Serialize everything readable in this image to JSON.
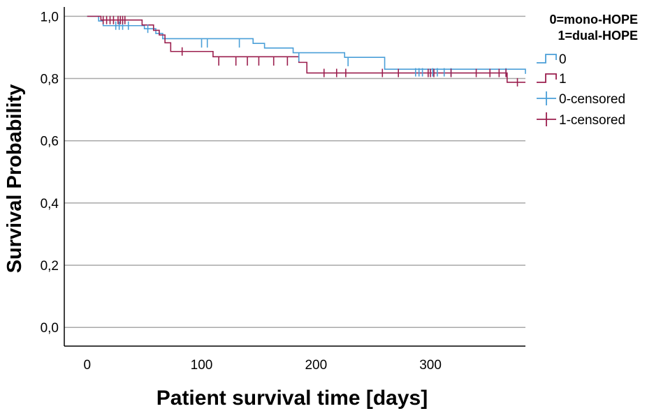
{
  "chart_data": {
    "type": "line",
    "title": "",
    "xlabel": "Patient survival time [days]",
    "ylabel": "Survival Probability",
    "xlim": [
      -20,
      383
    ],
    "ylim": [
      -0.06,
      1.03
    ],
    "x_ticks": [
      0,
      100,
      200,
      300
    ],
    "x_tick_labels": [
      "0",
      "100",
      "200",
      "300"
    ],
    "y_ticks": [
      0.0,
      0.2,
      0.4,
      0.6,
      0.8,
      1.0
    ],
    "y_tick_labels": [
      "0,0",
      "0,2",
      "0,4",
      "0,6",
      "0,8",
      "1,0"
    ],
    "grid": "horizontal",
    "legend": {
      "position": "top-right",
      "title_lines": [
        "0=mono-HOPE",
        "1=dual-HOPE"
      ],
      "entries": [
        {
          "label": "0",
          "kind": "step",
          "color": "#4a9fd8"
        },
        {
          "label": "1",
          "kind": "step",
          "color": "#9b1f4e"
        },
        {
          "label": "0-censored",
          "kind": "censor",
          "color": "#4a9fd8"
        },
        {
          "label": "1-censored",
          "kind": "censor",
          "color": "#9b1f4e"
        }
      ]
    },
    "series": [
      {
        "name": "0",
        "color": "#4a9fd8",
        "steps": [
          [
            0,
            1.0
          ],
          [
            10,
            0.985
          ],
          [
            14,
            0.97
          ],
          [
            35,
            0.97
          ],
          [
            50,
            0.96
          ],
          [
            60,
            0.945
          ],
          [
            66,
            0.928
          ],
          [
            100,
            0.928
          ],
          [
            145,
            0.913
          ],
          [
            155,
            0.898
          ],
          [
            180,
            0.883
          ],
          [
            225,
            0.868
          ],
          [
            260,
            0.83
          ],
          [
            383,
            0.815
          ]
        ],
        "censored": [
          [
            25,
            0.97
          ],
          [
            28,
            0.97
          ],
          [
            31,
            0.97
          ],
          [
            36,
            0.97
          ],
          [
            53,
            0.96
          ],
          [
            100,
            0.913
          ],
          [
            105,
            0.913
          ],
          [
            133,
            0.913
          ],
          [
            185,
            0.868
          ],
          [
            228,
            0.853
          ],
          [
            287,
            0.82
          ],
          [
            290,
            0.82
          ],
          [
            293,
            0.82
          ],
          [
            302,
            0.82
          ],
          [
            306,
            0.82
          ],
          [
            312,
            0.82
          ],
          [
            318,
            0.82
          ],
          [
            366,
            0.82
          ]
        ]
      },
      {
        "name": "1",
        "color": "#9b1f4e",
        "steps": [
          [
            0,
            1.0
          ],
          [
            12,
            0.988
          ],
          [
            48,
            0.972
          ],
          [
            58,
            0.955
          ],
          [
            63,
            0.94
          ],
          [
            68,
            0.915
          ],
          [
            73,
            0.887
          ],
          [
            110,
            0.87
          ],
          [
            185,
            0.852
          ],
          [
            192,
            0.818
          ],
          [
            367,
            0.788
          ],
          [
            383,
            0.788
          ]
        ],
        "censored": [
          [
            14,
            0.988
          ],
          [
            17,
            0.988
          ],
          [
            20,
            0.988
          ],
          [
            23,
            0.988
          ],
          [
            27,
            0.988
          ],
          [
            29,
            0.988
          ],
          [
            31,
            0.988
          ],
          [
            33,
            0.988
          ],
          [
            83,
            0.887
          ],
          [
            115,
            0.855
          ],
          [
            130,
            0.855
          ],
          [
            140,
            0.855
          ],
          [
            150,
            0.855
          ],
          [
            163,
            0.855
          ],
          [
            175,
            0.855
          ],
          [
            207,
            0.818
          ],
          [
            218,
            0.818
          ],
          [
            226,
            0.818
          ],
          [
            258,
            0.818
          ],
          [
            272,
            0.818
          ],
          [
            298,
            0.818
          ],
          [
            300,
            0.818
          ],
          [
            303,
            0.818
          ],
          [
            318,
            0.818
          ],
          [
            340,
            0.818
          ],
          [
            352,
            0.818
          ],
          [
            360,
            0.818
          ],
          [
            366,
            0.818
          ],
          [
            376,
            0.788
          ]
        ]
      }
    ]
  }
}
